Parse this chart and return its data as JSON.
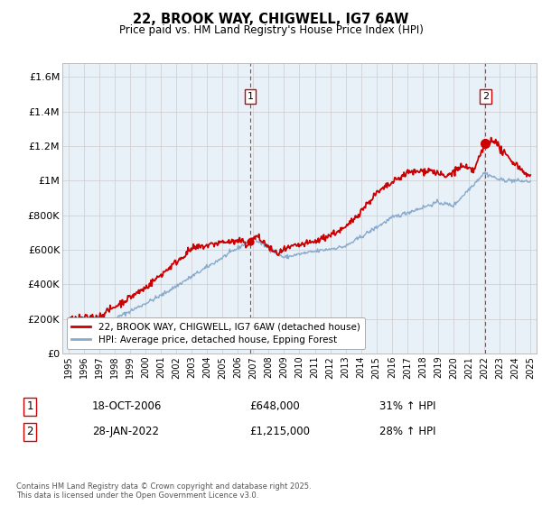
{
  "title": "22, BROOK WAY, CHIGWELL, IG7 6AW",
  "subtitle": "Price paid vs. HM Land Registry's House Price Index (HPI)",
  "ylabel_ticks": [
    "£0",
    "£200K",
    "£400K",
    "£600K",
    "£800K",
    "£1M",
    "£1.2M",
    "£1.4M",
    "£1.6M"
  ],
  "ytick_values": [
    0,
    200000,
    400000,
    600000,
    800000,
    1000000,
    1200000,
    1400000,
    1600000
  ],
  "ylim": [
    0,
    1680000
  ],
  "xlim_start": 1994.6,
  "xlim_end": 2025.4,
  "xtick_years": [
    1995,
    1996,
    1997,
    1998,
    1999,
    2000,
    2001,
    2002,
    2003,
    2004,
    2005,
    2006,
    2007,
    2008,
    2009,
    2010,
    2011,
    2012,
    2013,
    2014,
    2015,
    2016,
    2017,
    2018,
    2019,
    2020,
    2021,
    2022,
    2023,
    2024,
    2025
  ],
  "red_line_color": "#cc0000",
  "blue_line_color": "#88aacc",
  "plot_bg_color": "#e8f0f8",
  "marker1_date": 2006.8,
  "marker1_price": 648000,
  "marker2_date": 2022.08,
  "marker2_price": 1215000,
  "vline1_x": 2006.8,
  "vline2_x": 2022.08,
  "legend_line1": "22, BROOK WAY, CHIGWELL, IG7 6AW (detached house)",
  "legend_line2": "HPI: Average price, detached house, Epping Forest",
  "annotation1_date": "18-OCT-2006",
  "annotation1_price": "£648,000",
  "annotation1_hpi": "31% ↑ HPI",
  "annotation2_date": "28-JAN-2022",
  "annotation2_price": "£1,215,000",
  "annotation2_hpi": "28% ↑ HPI",
  "footer": "Contains HM Land Registry data © Crown copyright and database right 2025.\nThis data is licensed under the Open Government Licence v3.0.",
  "background_color": "#ffffff",
  "grid_color": "#cccccc"
}
